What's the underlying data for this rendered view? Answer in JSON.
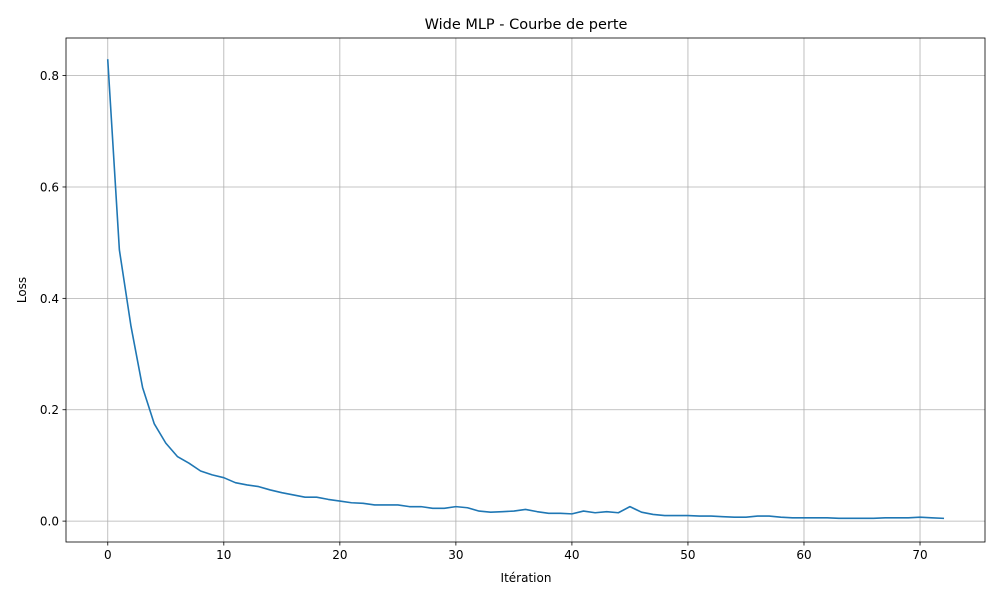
{
  "chart_data": {
    "type": "line",
    "title": "Wide MLP - Courbe de perte",
    "xlabel": "Itération",
    "ylabel": "Loss",
    "xlim": [
      -3.6,
      75.6
    ],
    "ylim": [
      -0.0375,
      0.8675
    ],
    "xticks": [
      0,
      10,
      20,
      30,
      40,
      50,
      60,
      70
    ],
    "yticks": [
      0.0,
      0.2,
      0.4,
      0.6,
      0.8
    ],
    "ytick_labels": [
      "0.0",
      "0.2",
      "0.4",
      "0.6",
      "0.8"
    ],
    "grid": true,
    "line_color": "#1f77b4",
    "grid_color": "#b0b0b0",
    "series": [
      {
        "x": [
          0,
          1,
          2,
          3,
          4,
          5,
          6,
          7,
          8,
          9,
          10,
          11,
          12,
          13,
          14,
          15,
          16,
          17,
          18,
          19,
          20,
          21,
          22,
          23,
          24,
          25,
          26,
          27,
          28,
          29,
          30,
          31,
          32,
          33,
          34,
          35,
          36,
          37,
          38,
          39,
          40,
          41,
          42,
          43,
          44,
          45,
          46,
          47,
          48,
          49,
          50,
          51,
          52,
          53,
          54,
          55,
          56,
          57,
          58,
          59,
          60,
          61,
          62,
          63,
          64,
          65,
          66,
          67,
          68,
          69,
          70,
          71,
          72
        ],
        "values": [
          0.828,
          0.487,
          0.35,
          0.24,
          0.175,
          0.14,
          0.116,
          0.104,
          0.09,
          0.083,
          0.078,
          0.069,
          0.065,
          0.062,
          0.056,
          0.051,
          0.047,
          0.043,
          0.043,
          0.039,
          0.036,
          0.033,
          0.032,
          0.029,
          0.029,
          0.029,
          0.026,
          0.026,
          0.023,
          0.023,
          0.026,
          0.024,
          0.018,
          0.016,
          0.017,
          0.018,
          0.021,
          0.017,
          0.014,
          0.014,
          0.013,
          0.018,
          0.015,
          0.017,
          0.015,
          0.026,
          0.016,
          0.012,
          0.01,
          0.01,
          0.01,
          0.009,
          0.009,
          0.008,
          0.007,
          0.007,
          0.009,
          0.009,
          0.007,
          0.006,
          0.006,
          0.006,
          0.006,
          0.005,
          0.005,
          0.005,
          0.005,
          0.006,
          0.006,
          0.006,
          0.007,
          0.006,
          0.005
        ]
      }
    ]
  }
}
